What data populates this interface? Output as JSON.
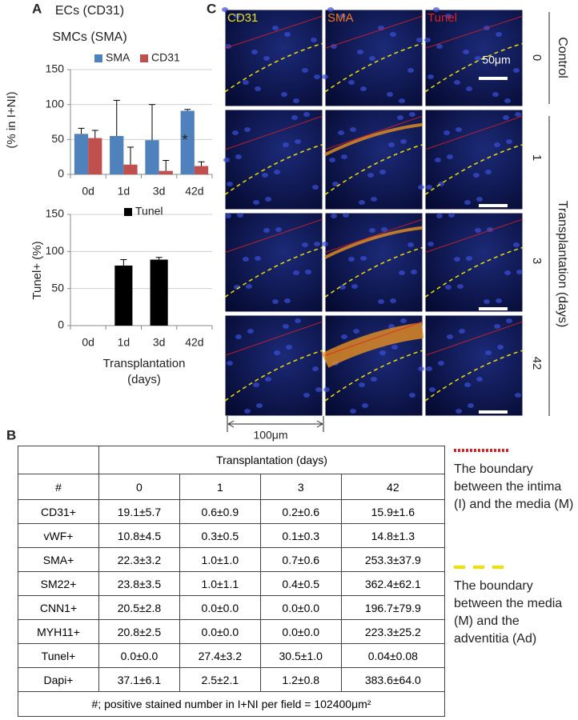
{
  "panels": [
    "A",
    "B",
    "C"
  ],
  "chart_data": [
    {
      "type": "bar",
      "title": "ECs (CD31)",
      "subtitle": "SMCs (SMA)",
      "ylabel": "(% in I+NI)",
      "categories": [
        "0d",
        "1d",
        "3d",
        "42d"
      ],
      "series": [
        {
          "name": "SMA",
          "color": "#4f81bd",
          "values": [
            58,
            55,
            49,
            91
          ],
          "errors": [
            8,
            51,
            51,
            2
          ]
        },
        {
          "name": "CD31",
          "color": "#c0504d",
          "values": [
            52,
            14,
            5,
            12
          ],
          "errors": [
            11,
            25,
            15,
            6
          ]
        }
      ],
      "annotation": "*",
      "ylim": [
        0,
        150
      ],
      "yticks": [
        0,
        50,
        100,
        150
      ],
      "grid": true
    },
    {
      "type": "bar",
      "ylabel": "Tunel+ (%)",
      "xlabel": "Transplantation (days)",
      "categories": [
        "0d",
        "1d",
        "3d",
        "42d"
      ],
      "series": [
        {
          "name": "Tunel",
          "color": "#000000",
          "values": [
            0,
            81,
            89,
            0
          ],
          "errors": [
            0,
            8,
            3,
            0
          ]
        }
      ],
      "ylim": [
        0,
        150
      ],
      "yticks": [
        0,
        50,
        100,
        150
      ],
      "grid": true
    }
  ],
  "micrographs": {
    "columns": [
      "CD31",
      "SMA",
      "Tunel"
    ],
    "column_colors": [
      "#e8e020",
      "#f07c20",
      "#e02020"
    ],
    "rows": [
      "0",
      "1",
      "3",
      "42"
    ],
    "group_labels": [
      "Control",
      "Transplantation (days)"
    ],
    "scale_bar": "50μm",
    "width_bar": "100μm"
  },
  "table": {
    "header": "Transplantation (days)",
    "columns": [
      "#",
      "0",
      "1",
      "3",
      "42"
    ],
    "rows": [
      [
        "CD31+",
        "19.1±5.7",
        "0.6±0.9",
        "0.2±0.6",
        "15.9±1.6"
      ],
      [
        "vWF+",
        "10.8±4.5",
        "0.3±0.5",
        "0.1±0.3",
        "14.8±1.3"
      ],
      [
        "SMA+",
        "22.3±3.2",
        "1.0±1.0",
        "0.7±0.6",
        "253.3±37.9"
      ],
      [
        "SM22+",
        "23.8±3.5",
        "1.0±1.1",
        "0.4±0.5",
        "362.4±62.1"
      ],
      [
        "CNN1+",
        "20.5±2.8",
        "0.0±0.0",
        "0.0±0.0",
        "196.7±79.9"
      ],
      [
        "MYH11+",
        "20.8±2.5",
        "0.0±0.0",
        "0.0±0.0",
        "223.3±25.2"
      ],
      [
        "Tunel+",
        "0.0±0.0",
        "27.4±3.2",
        "30.5±1.0",
        "0.04±0.08"
      ],
      [
        "Dapi+",
        "37.1±6.1",
        "2.5±2.1",
        "1.2±0.8",
        "383.6±64.0"
      ]
    ],
    "footnote": "#; positive stained number in I+NI per field = 102400μm²"
  },
  "legend": [
    "The boundary between the intima (I) and the media (M)",
    "The boundary between the media (M) and the adventitia (Ad)"
  ]
}
